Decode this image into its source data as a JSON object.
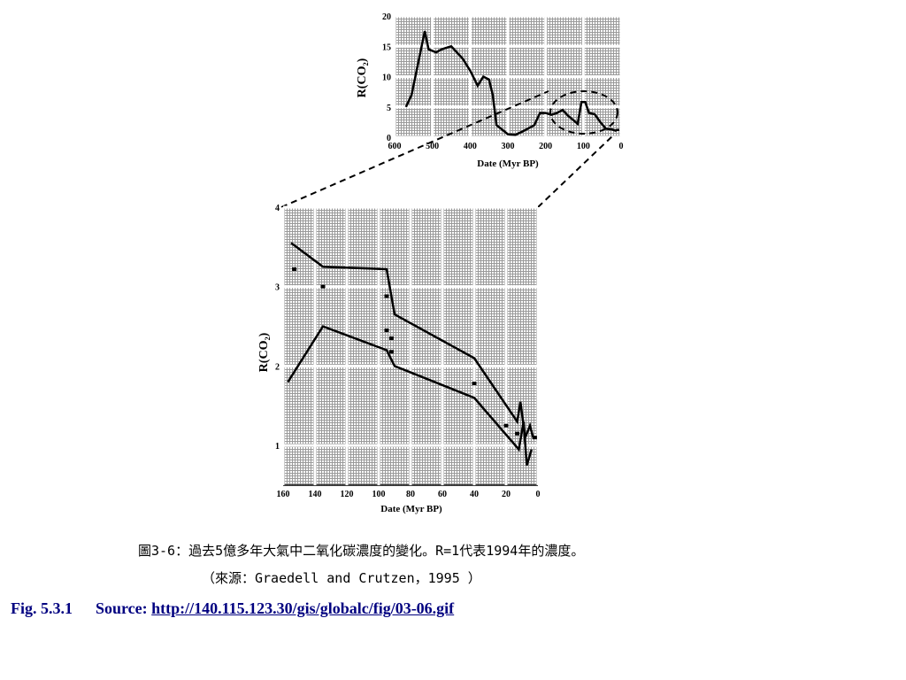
{
  "chart_data": [
    {
      "type": "line",
      "title": "",
      "xlabel": "Date (Myr BP)",
      "ylabel": "R(CO₂)",
      "xlim": [
        600,
        0
      ],
      "ylim": [
        0,
        20
      ],
      "x_ticks": [
        "600",
        "500",
        "400",
        "300",
        "200",
        "100",
        "0"
      ],
      "y_ticks": [
        "0",
        "5",
        "10",
        "15",
        "20"
      ],
      "x_reversed": true,
      "grid": true,
      "series": [
        {
          "x": [
            570,
            555,
            520,
            510,
            490,
            475,
            450,
            420,
            400,
            380,
            365,
            350,
            340,
            330,
            320,
            300,
            280,
            260,
            230,
            215,
            200,
            185,
            170,
            155,
            140,
            130,
            115,
            105,
            95,
            85,
            70,
            55,
            40,
            25,
            15,
            10,
            5
          ],
          "y": [
            5,
            7,
            17.5,
            14.5,
            14,
            14.5,
            15,
            13,
            11,
            8.5,
            10,
            9.5,
            7,
            2,
            1.5,
            0.5,
            0.4,
            1,
            2,
            4,
            4,
            3.7,
            4,
            4.5,
            3.5,
            3,
            2.2,
            5.8,
            5.8,
            4,
            3.8,
            2.5,
            1.4,
            1.3,
            1.1,
            1.2,
            1.2
          ]
        }
      ],
      "annotations": [
        "dashed ellipse around 0–160 Myr BP region, enlarged in lower panel"
      ]
    },
    {
      "type": "line",
      "title": "",
      "xlabel": "Date (Myr BP)",
      "ylabel": "R(CO₂)",
      "xlim": [
        160,
        0
      ],
      "ylim": [
        0.5,
        4
      ],
      "x_ticks": [
        "160",
        "140",
        "120",
        "100",
        "80",
        "60",
        "40",
        "20",
        "0"
      ],
      "y_ticks": [
        "1",
        "2",
        "3",
        "4"
      ],
      "x_reversed": true,
      "grid": true,
      "series": [
        {
          "x": [
            155,
            135,
            95,
            90,
            40,
            13,
            11,
            8,
            5,
            3
          ],
          "y": [
            3.55,
            3.25,
            3.22,
            2.65,
            2.1,
            1.3,
            1.55,
            1.1,
            1.25,
            1.1
          ]
        },
        {
          "x": [
            157,
            135,
            95,
            90,
            40,
            12,
            9,
            7,
            4
          ],
          "y": [
            1.8,
            2.5,
            2.2,
            2.0,
            1.6,
            0.95,
            1.3,
            0.75,
            0.95
          ]
        }
      ],
      "points": {
        "x": [
          153,
          135,
          95,
          95,
          92,
          92,
          40,
          20,
          13,
          2
        ],
        "y": [
          3.22,
          3.0,
          2.88,
          2.45,
          2.35,
          2.18,
          1.78,
          1.25,
          1.15,
          1.1
        ]
      }
    }
  ],
  "caption": {
    "line1": "圖3-6：過去5億多年大氣中二氧化碳濃度的變化。R=1代表1994年的濃度。",
    "line2": "（來源：Graedell and Crutzen，1995 ）"
  },
  "footer": {
    "fig_label": "Fig. 5.3.1",
    "source_label": "Source:",
    "source_link": "http://140.115.123.30/gis/globalc/fig/03-06.gif"
  },
  "colors": {
    "line": "#000000",
    "grid_bg": "#c8c8c8",
    "footer": "#000080"
  }
}
